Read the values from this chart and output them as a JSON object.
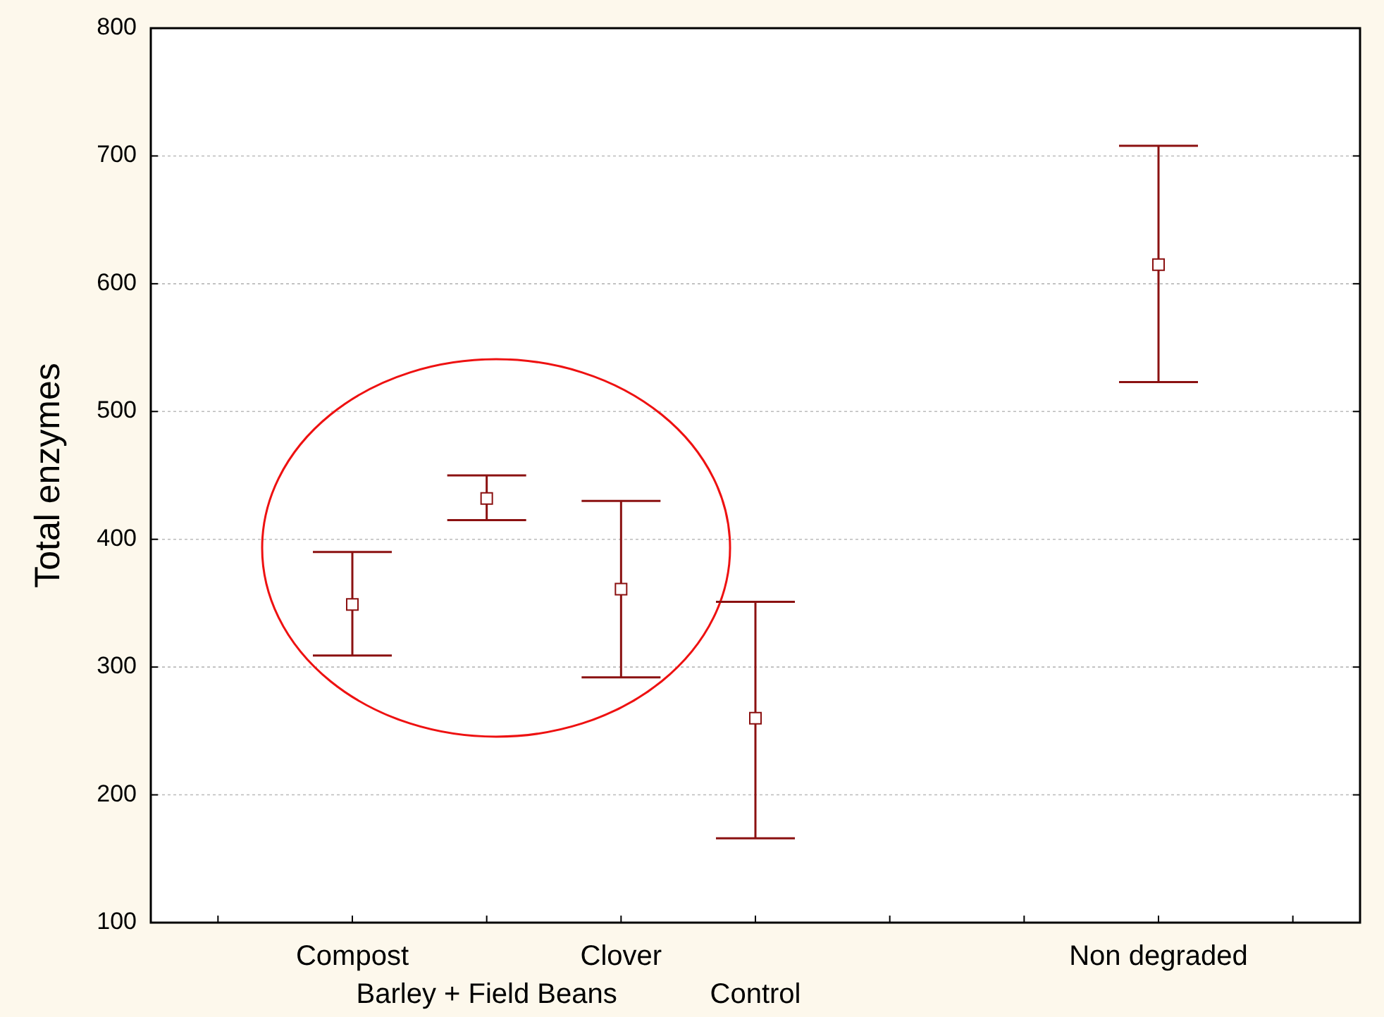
{
  "chart_data": {
    "type": "scatter",
    "ylabel": "Total enzymes",
    "categories": [
      null,
      "Compost",
      "Barley + Field Beans",
      "Clover",
      "Control",
      null,
      null,
      "Non degraded",
      null
    ],
    "values": [
      null,
      349,
      432,
      361,
      260,
      null,
      null,
      615,
      null
    ],
    "errors": [
      null,
      [
        309,
        390
      ],
      [
        415,
        450
      ],
      [
        292,
        430
      ],
      [
        166,
        351
      ],
      null,
      null,
      [
        523,
        708
      ],
      null
    ],
    "color": "#8b1111",
    "marker": "square",
    "ylim": [
      100,
      800
    ],
    "yticks": [
      100,
      200,
      300,
      400,
      500,
      600,
      700,
      800
    ],
    "grid": "y"
  }
}
